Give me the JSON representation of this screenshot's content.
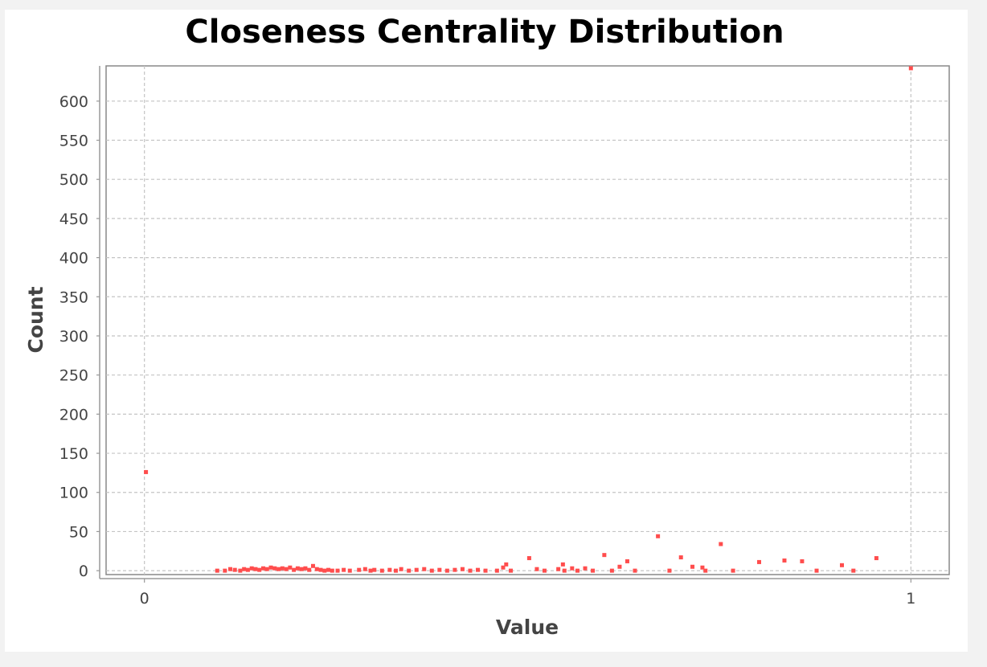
{
  "chart_data": {
    "type": "scatter",
    "title": "Closeness Centrality Distribution",
    "xlabel": "Value",
    "ylabel": "Count",
    "xlim": [
      -0.05,
      1.05
    ],
    "ylim": [
      -5,
      645
    ],
    "x_ticks": [
      0,
      1
    ],
    "x_tick_labels": [
      "0",
      "1"
    ],
    "y_ticks": [
      0,
      50,
      100,
      150,
      200,
      250,
      300,
      350,
      400,
      450,
      500,
      550,
      600
    ],
    "y_tick_labels": [
      "0",
      "50",
      "100",
      "150",
      "200",
      "250",
      "300",
      "350",
      "400",
      "450",
      "500",
      "550",
      "600"
    ],
    "grid": true,
    "legend": "none",
    "point_color": "#ff4d4d",
    "series": [
      {
        "points": [
          {
            "x": 0.002,
            "y": 126
          },
          {
            "x": 1.0,
            "y": 642
          },
          {
            "x": 0.095,
            "y": 0
          },
          {
            "x": 0.105,
            "y": 0
          },
          {
            "x": 0.112,
            "y": 2
          },
          {
            "x": 0.118,
            "y": 1
          },
          {
            "x": 0.125,
            "y": 0
          },
          {
            "x": 0.13,
            "y": 2
          },
          {
            "x": 0.135,
            "y": 1
          },
          {
            "x": 0.14,
            "y": 3
          },
          {
            "x": 0.145,
            "y": 2
          },
          {
            "x": 0.15,
            "y": 1
          },
          {
            "x": 0.155,
            "y": 3
          },
          {
            "x": 0.16,
            "y": 2
          },
          {
            "x": 0.165,
            "y": 4
          },
          {
            "x": 0.17,
            "y": 3
          },
          {
            "x": 0.175,
            "y": 2
          },
          {
            "x": 0.18,
            "y": 3
          },
          {
            "x": 0.185,
            "y": 2
          },
          {
            "x": 0.19,
            "y": 4
          },
          {
            "x": 0.195,
            "y": 1
          },
          {
            "x": 0.2,
            "y": 3
          },
          {
            "x": 0.205,
            "y": 2
          },
          {
            "x": 0.21,
            "y": 3
          },
          {
            "x": 0.215,
            "y": 1
          },
          {
            "x": 0.22,
            "y": 6
          },
          {
            "x": 0.225,
            "y": 2
          },
          {
            "x": 0.23,
            "y": 1
          },
          {
            "x": 0.235,
            "y": 0
          },
          {
            "x": 0.24,
            "y": 1
          },
          {
            "x": 0.245,
            "y": 0
          },
          {
            "x": 0.252,
            "y": 0
          },
          {
            "x": 0.26,
            "y": 1
          },
          {
            "x": 0.268,
            "y": 0
          },
          {
            "x": 0.28,
            "y": 1
          },
          {
            "x": 0.288,
            "y": 2
          },
          {
            "x": 0.295,
            "y": 0
          },
          {
            "x": 0.3,
            "y": 1
          },
          {
            "x": 0.31,
            "y": 0
          },
          {
            "x": 0.32,
            "y": 1
          },
          {
            "x": 0.328,
            "y": 0
          },
          {
            "x": 0.335,
            "y": 2
          },
          {
            "x": 0.345,
            "y": 0
          },
          {
            "x": 0.355,
            "y": 1
          },
          {
            "x": 0.365,
            "y": 2
          },
          {
            "x": 0.375,
            "y": 0
          },
          {
            "x": 0.385,
            "y": 1
          },
          {
            "x": 0.395,
            "y": 0
          },
          {
            "x": 0.405,
            "y": 1
          },
          {
            "x": 0.415,
            "y": 2
          },
          {
            "x": 0.425,
            "y": 0
          },
          {
            "x": 0.435,
            "y": 1
          },
          {
            "x": 0.445,
            "y": 0
          },
          {
            "x": 0.46,
            "y": 0
          },
          {
            "x": 0.468,
            "y": 4
          },
          {
            "x": 0.472,
            "y": 8
          },
          {
            "x": 0.478,
            "y": 0
          },
          {
            "x": 0.502,
            "y": 16
          },
          {
            "x": 0.512,
            "y": 2
          },
          {
            "x": 0.522,
            "y": 0
          },
          {
            "x": 0.54,
            "y": 2
          },
          {
            "x": 0.548,
            "y": 0
          },
          {
            "x": 0.546,
            "y": 8
          },
          {
            "x": 0.558,
            "y": 3
          },
          {
            "x": 0.565,
            "y": 0
          },
          {
            "x": 0.575,
            "y": 3
          },
          {
            "x": 0.585,
            "y": 0
          },
          {
            "x": 0.6,
            "y": 20
          },
          {
            "x": 0.61,
            "y": 0
          },
          {
            "x": 0.62,
            "y": 5
          },
          {
            "x": 0.63,
            "y": 12
          },
          {
            "x": 0.64,
            "y": 0
          },
          {
            "x": 0.67,
            "y": 44
          },
          {
            "x": 0.685,
            "y": 0
          },
          {
            "x": 0.7,
            "y": 17
          },
          {
            "x": 0.715,
            "y": 5
          },
          {
            "x": 0.728,
            "y": 4
          },
          {
            "x": 0.732,
            "y": 0
          },
          {
            "x": 0.752,
            "y": 34
          },
          {
            "x": 0.768,
            "y": 0
          },
          {
            "x": 0.802,
            "y": 11
          },
          {
            "x": 0.835,
            "y": 13
          },
          {
            "x": 0.858,
            "y": 12
          },
          {
            "x": 0.877,
            "y": 0
          },
          {
            "x": 0.91,
            "y": 7
          },
          {
            "x": 0.925,
            "y": 0
          },
          {
            "x": 0.955,
            "y": 16
          }
        ]
      }
    ]
  }
}
